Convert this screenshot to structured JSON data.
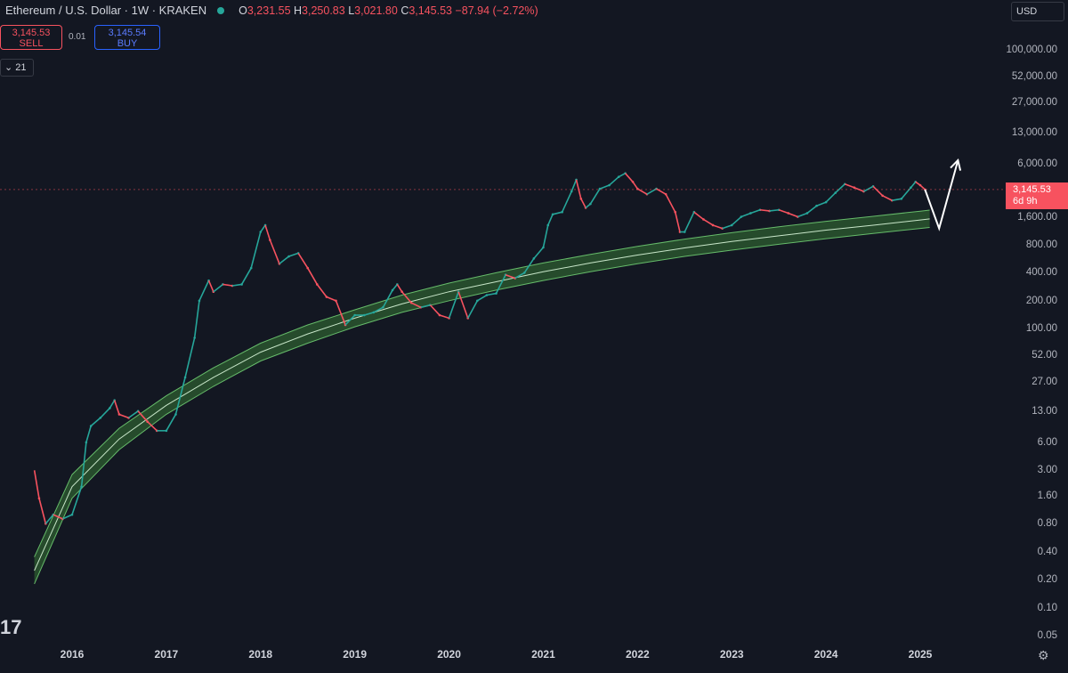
{
  "header": {
    "title": "Ethereum / U.S. Dollar · 1W · KRAKEN",
    "ohlc": {
      "o_label": "O",
      "o": "3,231.55",
      "h_label": "H",
      "h": "3,250.83",
      "l_label": "L",
      "l": "3,021.80",
      "c_label": "C",
      "c": "3,145.53",
      "change": "−87.94 (−2.72%)"
    }
  },
  "trade": {
    "sell_price": "3,145.53",
    "sell_label": "SELL",
    "spread": "0.01",
    "buy_price": "3,145.54",
    "buy_label": "BUY"
  },
  "interval_badge": "21",
  "currency_button": "USD",
  "current_price": {
    "price": "3,145.53",
    "countdown": "6d 9h"
  },
  "colors": {
    "up": "#26a69a",
    "down": "#f7525f",
    "band": "#4caf50",
    "background": "#131722"
  },
  "icons": {
    "logo": "tradingview-logo",
    "settings": "gear-icon"
  },
  "chart_data": {
    "type": "line",
    "scale": "log",
    "x_tick_labels": [
      "2016",
      "2017",
      "2018",
      "2019",
      "2020",
      "2021",
      "2022",
      "2023",
      "2024",
      "2025"
    ],
    "y_tick_labels": [
      "100,000.00",
      "52,000.00",
      "27,000.00",
      "13,000.00",
      "6,000.00",
      "1,600.00",
      "800.00",
      "400.00",
      "200.00",
      "100.00",
      "52.00",
      "27.00",
      "13.00",
      "6.00",
      "3.00",
      "1.60",
      "0.80",
      "0.40",
      "0.20",
      "0.10",
      "0.05"
    ],
    "ylim": [
      0.05,
      100000
    ],
    "series": [
      {
        "values": [
          [
            2015.6,
            3.0
          ],
          [
            2015.65,
            1.5
          ],
          [
            2015.72,
            0.8
          ],
          [
            2015.8,
            1.0
          ],
          [
            2015.9,
            0.9
          ],
          [
            2016.0,
            1.0
          ],
          [
            2016.1,
            2.0
          ],
          [
            2016.15,
            6.0
          ],
          [
            2016.2,
            9.0
          ],
          [
            2016.3,
            11.0
          ],
          [
            2016.4,
            14.0
          ],
          [
            2016.45,
            17.0
          ],
          [
            2016.5,
            12.0
          ],
          [
            2016.6,
            11.0
          ],
          [
            2016.7,
            13.0
          ],
          [
            2016.8,
            10.0
          ],
          [
            2016.9,
            8.0
          ],
          [
            2017.0,
            8.0
          ],
          [
            2017.1,
            12.0
          ],
          [
            2017.2,
            30.0
          ],
          [
            2017.3,
            80.0
          ],
          [
            2017.35,
            200.0
          ],
          [
            2017.45,
            330.0
          ],
          [
            2017.5,
            250.0
          ],
          [
            2017.6,
            300.0
          ],
          [
            2017.7,
            290.0
          ],
          [
            2017.8,
            300.0
          ],
          [
            2017.9,
            450.0
          ],
          [
            2018.0,
            1100.0
          ],
          [
            2018.05,
            1300.0
          ],
          [
            2018.1,
            900.0
          ],
          [
            2018.2,
            500.0
          ],
          [
            2018.3,
            600.0
          ],
          [
            2018.4,
            650.0
          ],
          [
            2018.5,
            450.0
          ],
          [
            2018.6,
            300.0
          ],
          [
            2018.7,
            220.0
          ],
          [
            2018.8,
            200.0
          ],
          [
            2018.9,
            110.0
          ],
          [
            2019.0,
            140.0
          ],
          [
            2019.1,
            140.0
          ],
          [
            2019.2,
            150.0
          ],
          [
            2019.3,
            170.0
          ],
          [
            2019.4,
            260.0
          ],
          [
            2019.45,
            300.0
          ],
          [
            2019.5,
            250.0
          ],
          [
            2019.6,
            190.0
          ],
          [
            2019.7,
            170.0
          ],
          [
            2019.8,
            180.0
          ],
          [
            2019.9,
            140.0
          ],
          [
            2020.0,
            130.0
          ],
          [
            2020.1,
            250.0
          ],
          [
            2020.2,
            130.0
          ],
          [
            2020.3,
            200.0
          ],
          [
            2020.4,
            230.0
          ],
          [
            2020.5,
            240.0
          ],
          [
            2020.6,
            380.0
          ],
          [
            2020.7,
            350.0
          ],
          [
            2020.8,
            400.0
          ],
          [
            2020.9,
            570.0
          ],
          [
            2021.0,
            750.0
          ],
          [
            2021.05,
            1300.0
          ],
          [
            2021.1,
            1700.0
          ],
          [
            2021.2,
            1800.0
          ],
          [
            2021.3,
            3000.0
          ],
          [
            2021.35,
            4000.0
          ],
          [
            2021.4,
            2500.0
          ],
          [
            2021.45,
            2000.0
          ],
          [
            2021.5,
            2200.0
          ],
          [
            2021.6,
            3200.0
          ],
          [
            2021.7,
            3500.0
          ],
          [
            2021.8,
            4300.0
          ],
          [
            2021.87,
            4700.0
          ],
          [
            2021.95,
            3800.0
          ],
          [
            2022.0,
            3200.0
          ],
          [
            2022.1,
            2800.0
          ],
          [
            2022.2,
            3200.0
          ],
          [
            2022.3,
            2800.0
          ],
          [
            2022.4,
            1800.0
          ],
          [
            2022.45,
            1100.0
          ],
          [
            2022.5,
            1100.0
          ],
          [
            2022.6,
            1800.0
          ],
          [
            2022.7,
            1500.0
          ],
          [
            2022.8,
            1300.0
          ],
          [
            2022.9,
            1200.0
          ],
          [
            2023.0,
            1300.0
          ],
          [
            2023.1,
            1600.0
          ],
          [
            2023.2,
            1750.0
          ],
          [
            2023.3,
            1900.0
          ],
          [
            2023.4,
            1850.0
          ],
          [
            2023.5,
            1900.0
          ],
          [
            2023.6,
            1750.0
          ],
          [
            2023.7,
            1600.0
          ],
          [
            2023.8,
            1750.0
          ],
          [
            2023.9,
            2100.0
          ],
          [
            2024.0,
            2300.0
          ],
          [
            2024.1,
            2900.0
          ],
          [
            2024.2,
            3600.0
          ],
          [
            2024.3,
            3300.0
          ],
          [
            2024.4,
            3000.0
          ],
          [
            2024.5,
            3400.0
          ],
          [
            2024.6,
            2700.0
          ],
          [
            2024.7,
            2400.0
          ],
          [
            2024.8,
            2500.0
          ],
          [
            2024.9,
            3300.0
          ],
          [
            2024.95,
            3800.0
          ],
          [
            2025.0,
            3500.0
          ],
          [
            2025.05,
            3145.53
          ]
        ]
      },
      {
        "values": [
          [
            2015.6,
            0.18
          ],
          [
            2016.0,
            1.5
          ],
          [
            2016.5,
            5.0
          ],
          [
            2017.0,
            12.0
          ],
          [
            2017.5,
            24.0
          ],
          [
            2018.0,
            45.0
          ],
          [
            2018.5,
            70.0
          ],
          [
            2019.0,
            105.0
          ],
          [
            2019.5,
            150.0
          ],
          [
            2020.0,
            200.0
          ],
          [
            2020.5,
            260.0
          ],
          [
            2021.0,
            330.0
          ],
          [
            2021.5,
            410.0
          ],
          [
            2022.0,
            500.0
          ],
          [
            2022.5,
            600.0
          ],
          [
            2023.0,
            700.0
          ],
          [
            2023.5,
            810.0
          ],
          [
            2024.0,
            930.0
          ],
          [
            2024.5,
            1060.0
          ],
          [
            2025.0,
            1200.0
          ],
          [
            2025.1,
            1230.0
          ]
        ]
      },
      {
        "values": [
          [
            2015.6,
            0.25
          ],
          [
            2016.0,
            2.0
          ],
          [
            2016.5,
            6.5
          ],
          [
            2017.0,
            15.0
          ],
          [
            2017.5,
            30.0
          ],
          [
            2018.0,
            56.0
          ],
          [
            2018.5,
            88.0
          ],
          [
            2019.0,
            130.0
          ],
          [
            2019.5,
            185.0
          ],
          [
            2020.0,
            250.0
          ],
          [
            2020.5,
            320.0
          ],
          [
            2021.0,
            410.0
          ],
          [
            2021.5,
            510.0
          ],
          [
            2022.0,
            620.0
          ],
          [
            2022.5,
            740.0
          ],
          [
            2023.0,
            870.0
          ],
          [
            2023.5,
            1000.0
          ],
          [
            2024.0,
            1150.0
          ],
          [
            2024.5,
            1300.0
          ],
          [
            2025.0,
            1480.0
          ],
          [
            2025.1,
            1520.0
          ]
        ]
      },
      {
        "values": [
          [
            2015.6,
            0.35
          ],
          [
            2016.0,
            2.7
          ],
          [
            2016.5,
            8.5
          ],
          [
            2017.0,
            19.0
          ],
          [
            2017.5,
            38.0
          ],
          [
            2018.0,
            70.0
          ],
          [
            2018.5,
            110.0
          ],
          [
            2019.0,
            160.0
          ],
          [
            2019.5,
            230.0
          ],
          [
            2020.0,
            310.0
          ],
          [
            2020.5,
            400.0
          ],
          [
            2021.0,
            510.0
          ],
          [
            2021.5,
            630.0
          ],
          [
            2022.0,
            770.0
          ],
          [
            2022.5,
            920.0
          ],
          [
            2023.0,
            1080.0
          ],
          [
            2023.5,
            1250.0
          ],
          [
            2024.0,
            1430.0
          ],
          [
            2024.5,
            1620.0
          ],
          [
            2025.0,
            1840.0
          ],
          [
            2025.1,
            1890.0
          ]
        ]
      }
    ],
    "projection": [
      [
        2025.05,
        3145.53
      ],
      [
        2025.2,
        1200.0
      ],
      [
        2025.4,
        6500.0
      ]
    ]
  }
}
